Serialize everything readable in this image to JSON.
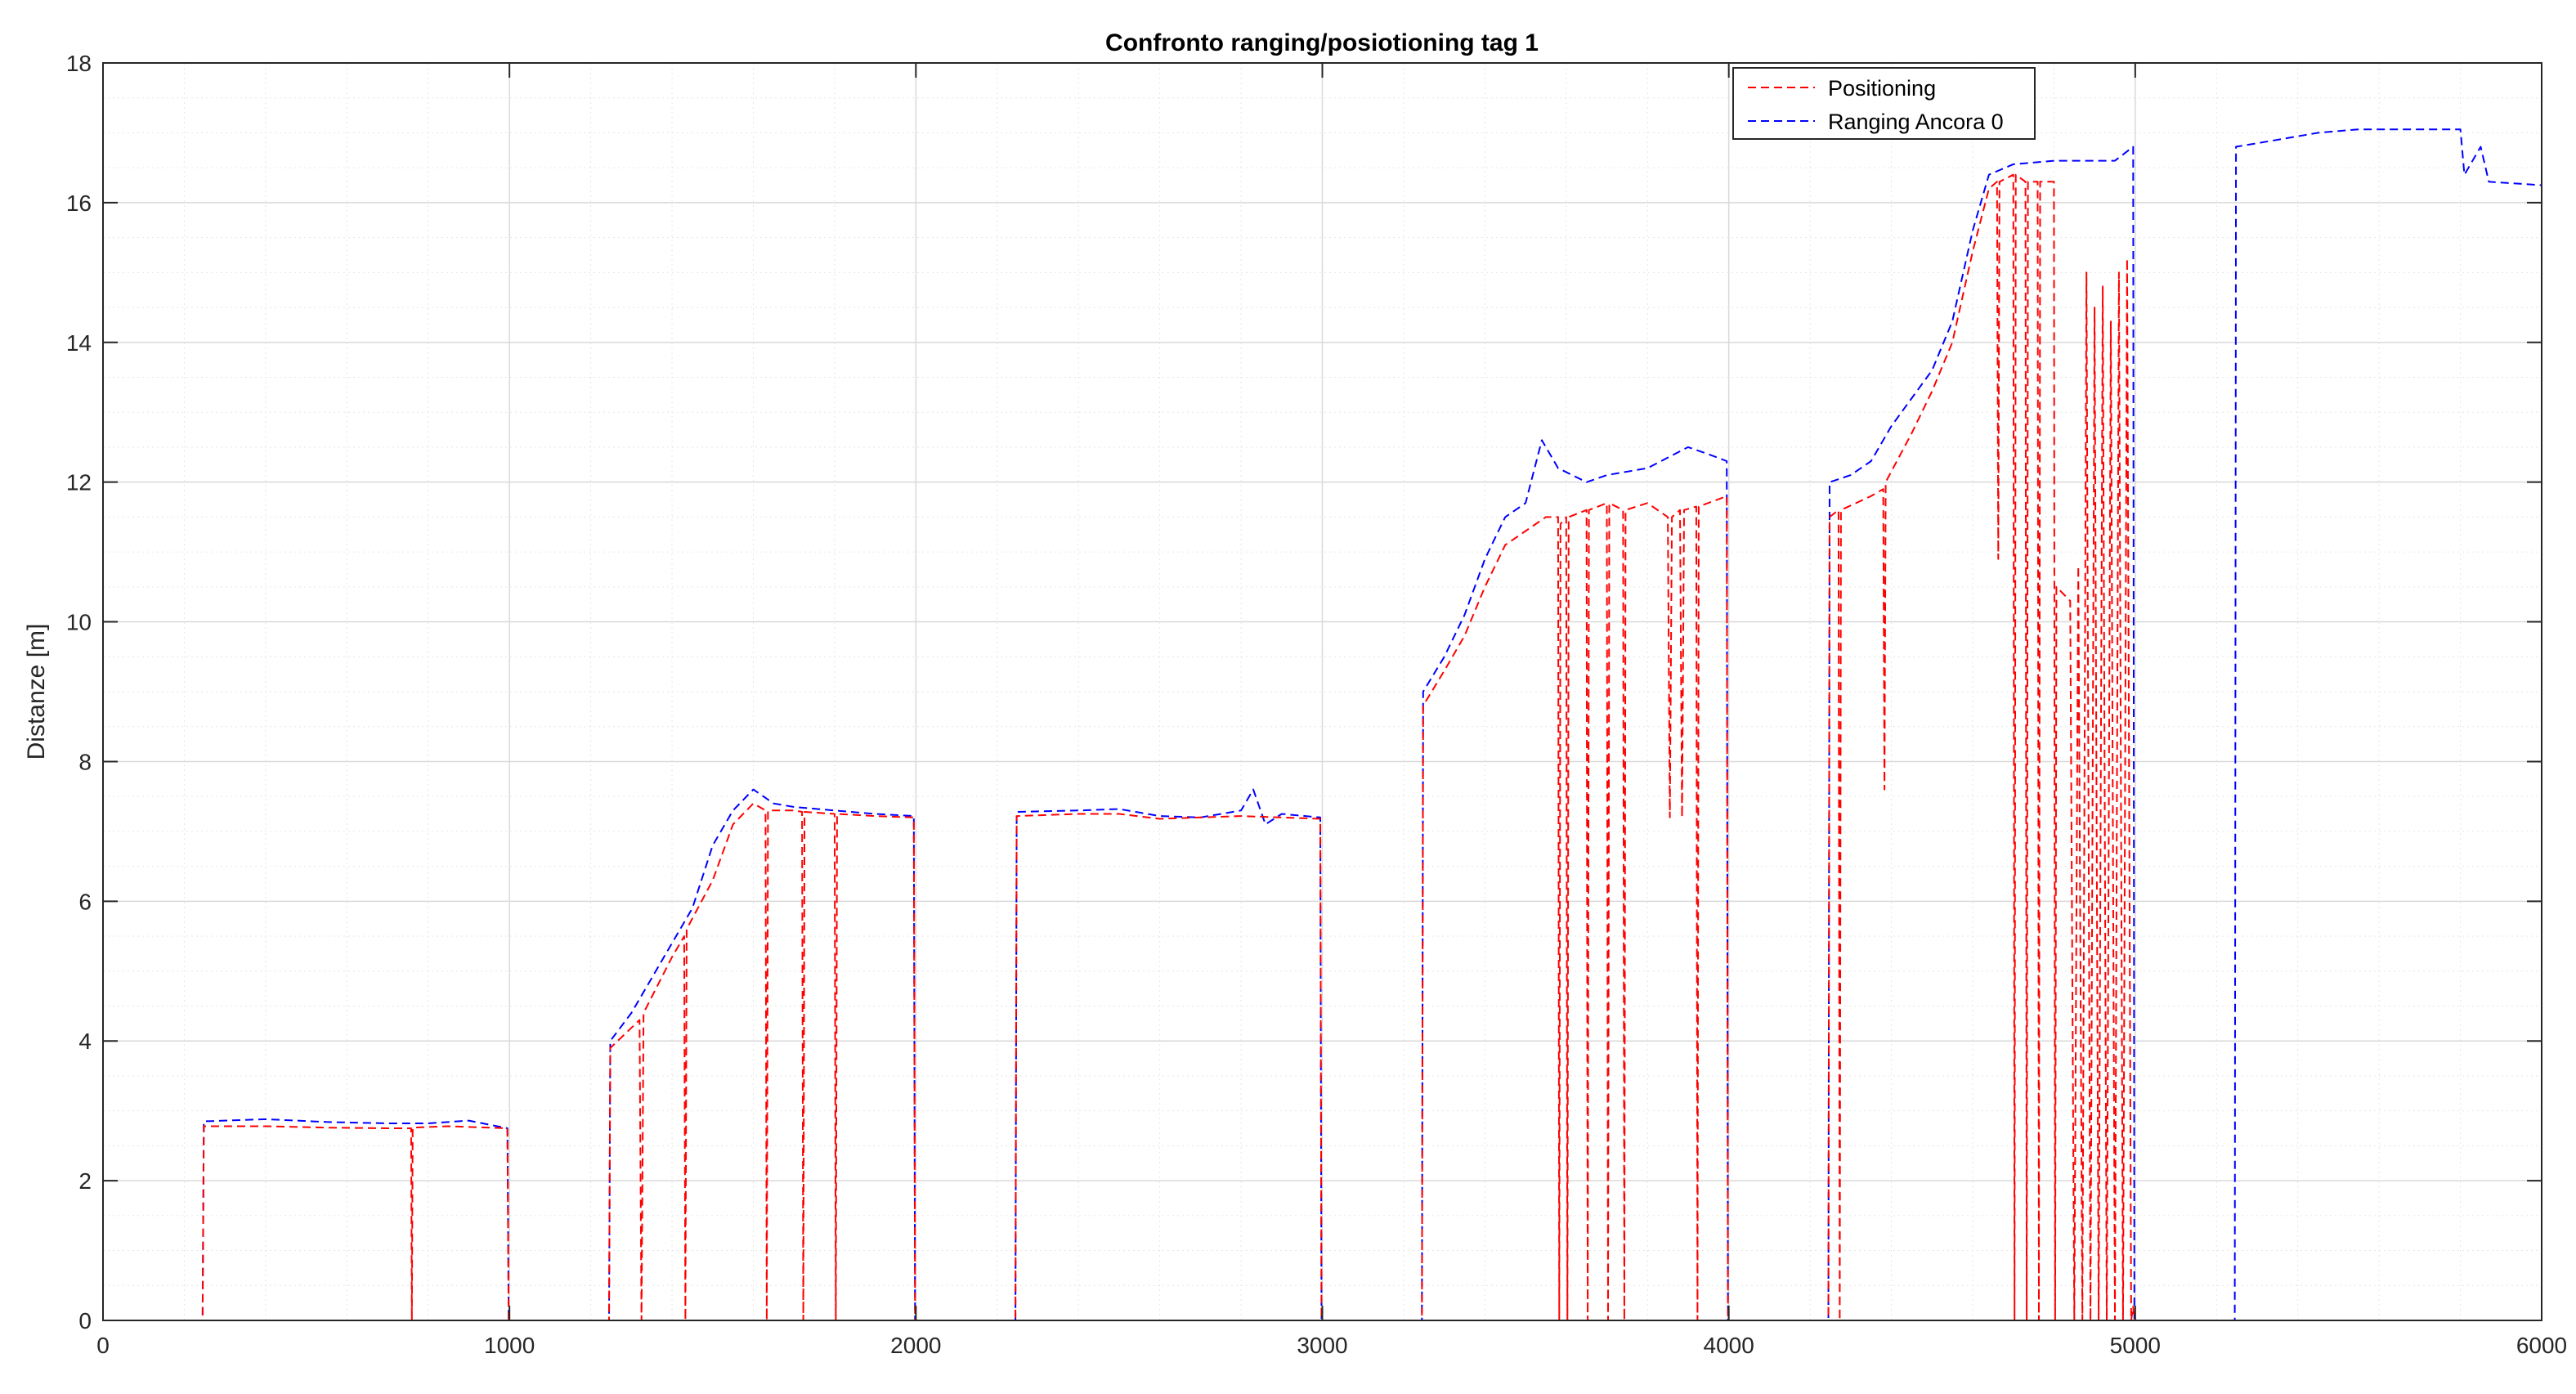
{
  "chart_data": {
    "type": "line",
    "title": "Confronto ranging/posiotioning tag 1",
    "xlabel": "",
    "ylabel": "Distanze [m]",
    "xlim": [
      0,
      6000
    ],
    "ylim": [
      0,
      18
    ],
    "xticks": [
      0,
      1000,
      2000,
      3000,
      4000,
      5000,
      6000
    ],
    "yticks": [
      0,
      2,
      4,
      6,
      8,
      10,
      12,
      14,
      16,
      18
    ],
    "grid": true,
    "minor_grid": true,
    "legend_position": "top-right",
    "series": [
      {
        "name": "Ranging Ancora 0",
        "color": "#0000ff",
        "line_style": "dashed",
        "points": [
          [
            0,
            0
          ],
          [
            245,
            0
          ],
          [
            248,
            2.85
          ],
          [
            400,
            2.88
          ],
          [
            550,
            2.84
          ],
          [
            700,
            2.82
          ],
          [
            800,
            2.82
          ],
          [
            900,
            2.86
          ],
          [
            995,
            2.75
          ],
          [
            998,
            0
          ],
          [
            1245,
            0
          ],
          [
            1248,
            4.0
          ],
          [
            1300,
            4.4
          ],
          [
            1350,
            4.9
          ],
          [
            1400,
            5.4
          ],
          [
            1450,
            5.9
          ],
          [
            1500,
            6.8
          ],
          [
            1550,
            7.3
          ],
          [
            1600,
            7.6
          ],
          [
            1650,
            7.4
          ],
          [
            1700,
            7.35
          ],
          [
            1800,
            7.3
          ],
          [
            1900,
            7.25
          ],
          [
            1995,
            7.22
          ],
          [
            1998,
            0
          ],
          [
            2245,
            0
          ],
          [
            2248,
            7.28
          ],
          [
            2400,
            7.3
          ],
          [
            2500,
            7.32
          ],
          [
            2600,
            7.22
          ],
          [
            2700,
            7.2
          ],
          [
            2800,
            7.3
          ],
          [
            2830,
            7.6
          ],
          [
            2860,
            7.1
          ],
          [
            2900,
            7.25
          ],
          [
            2995,
            7.2
          ],
          [
            2998,
            0
          ],
          [
            3245,
            0
          ],
          [
            3248,
            9.0
          ],
          [
            3300,
            9.5
          ],
          [
            3350,
            10.1
          ],
          [
            3400,
            10.9
          ],
          [
            3450,
            11.5
          ],
          [
            3500,
            11.7
          ],
          [
            3540,
            12.6
          ],
          [
            3580,
            12.2
          ],
          [
            3650,
            12.0
          ],
          [
            3700,
            12.1
          ],
          [
            3800,
            12.2
          ],
          [
            3900,
            12.5
          ],
          [
            3950,
            12.4
          ],
          [
            3995,
            12.3
          ],
          [
            3998,
            0
          ],
          [
            4245,
            0
          ],
          [
            4248,
            12.0
          ],
          [
            4300,
            12.1
          ],
          [
            4350,
            12.3
          ],
          [
            4400,
            12.8
          ],
          [
            4450,
            13.2
          ],
          [
            4500,
            13.6
          ],
          [
            4550,
            14.3
          ],
          [
            4600,
            15.6
          ],
          [
            4640,
            16.4
          ],
          [
            4700,
            16.55
          ],
          [
            4800,
            16.6
          ],
          [
            4950,
            16.6
          ],
          [
            4995,
            16.8
          ],
          [
            4998,
            0
          ],
          [
            5245,
            0
          ],
          [
            5248,
            16.8
          ],
          [
            5350,
            16.9
          ],
          [
            5450,
            17.0
          ],
          [
            5550,
            17.05
          ],
          [
            5700,
            17.05
          ],
          [
            5800,
            17.05
          ],
          [
            5810,
            16.4
          ],
          [
            5850,
            16.8
          ],
          [
            5870,
            16.3
          ],
          [
            6000,
            16.25
          ]
        ]
      },
      {
        "name": "Positioning",
        "color": "#ff0000",
        "line_style": "dashed",
        "points": [
          [
            0,
            0
          ],
          [
            245,
            0
          ],
          [
            248,
            2.78
          ],
          [
            400,
            2.78
          ],
          [
            550,
            2.76
          ],
          [
            700,
            2.75
          ],
          [
            758,
            2.75
          ],
          [
            760,
            0
          ],
          [
            762,
            2.76
          ],
          [
            850,
            2.78
          ],
          [
            995,
            2.75
          ],
          [
            998,
            0
          ],
          [
            1245,
            0
          ],
          [
            1248,
            3.9
          ],
          [
            1320,
            4.3
          ],
          [
            1325,
            0
          ],
          [
            1330,
            4.4
          ],
          [
            1400,
            5.2
          ],
          [
            1430,
            5.5
          ],
          [
            1433,
            0
          ],
          [
            1436,
            5.6
          ],
          [
            1500,
            6.3
          ],
          [
            1550,
            7.1
          ],
          [
            1600,
            7.4
          ],
          [
            1630,
            7.3
          ],
          [
            1633,
            0
          ],
          [
            1636,
            7.3
          ],
          [
            1700,
            7.3
          ],
          [
            1720,
            7.28
          ],
          [
            1723,
            0
          ],
          [
            1726,
            7.28
          ],
          [
            1800,
            7.25
          ],
          [
            1803,
            0
          ],
          [
            1806,
            7.25
          ],
          [
            1900,
            7.22
          ],
          [
            1995,
            7.2
          ],
          [
            1998,
            0
          ],
          [
            2245,
            0
          ],
          [
            2248,
            7.22
          ],
          [
            2400,
            7.25
          ],
          [
            2500,
            7.25
          ],
          [
            2600,
            7.18
          ],
          [
            2700,
            7.2
          ],
          [
            2800,
            7.22
          ],
          [
            2900,
            7.2
          ],
          [
            2995,
            7.18
          ],
          [
            2998,
            0
          ],
          [
            3245,
            0
          ],
          [
            3248,
            8.8
          ],
          [
            3300,
            9.3
          ],
          [
            3350,
            9.8
          ],
          [
            3400,
            10.5
          ],
          [
            3450,
            11.1
          ],
          [
            3500,
            11.3
          ],
          [
            3550,
            11.5
          ],
          [
            3580,
            11.5
          ],
          [
            3583,
            0
          ],
          [
            3586,
            11.4
          ],
          [
            3600,
            11.5
          ],
          [
            3603,
            0
          ],
          [
            3606,
            11.5
          ],
          [
            3650,
            11.6
          ],
          [
            3653,
            0
          ],
          [
            3656,
            11.6
          ],
          [
            3700,
            11.7
          ],
          [
            3703,
            0
          ],
          [
            3706,
            11.7
          ],
          [
            3740,
            11.6
          ],
          [
            3743,
            0
          ],
          [
            3746,
            11.6
          ],
          [
            3800,
            11.7
          ],
          [
            3850,
            11.5
          ],
          [
            3855,
            7.2
          ],
          [
            3860,
            11.5
          ],
          [
            3880,
            11.6
          ],
          [
            3885,
            7.2
          ],
          [
            3890,
            11.6
          ],
          [
            3920,
            11.65
          ],
          [
            3923,
            0
          ],
          [
            3926,
            11.65
          ],
          [
            3995,
            11.8
          ],
          [
            3998,
            0
          ],
          [
            4245,
            0
          ],
          [
            4248,
            11.5
          ],
          [
            4270,
            11.6
          ],
          [
            4273,
            0
          ],
          [
            4276,
            11.6
          ],
          [
            4350,
            11.8
          ],
          [
            4380,
            11.9
          ],
          [
            4383,
            7.6
          ],
          [
            4386,
            12.0
          ],
          [
            4450,
            12.7
          ],
          [
            4500,
            13.3
          ],
          [
            4550,
            14.0
          ],
          [
            4600,
            15.3
          ],
          [
            4640,
            16.2
          ],
          [
            4660,
            16.3
          ],
          [
            4663,
            10.9
          ],
          [
            4666,
            16.3
          ],
          [
            4700,
            16.4
          ],
          [
            4703,
            0
          ],
          [
            4706,
            16.4
          ],
          [
            4730,
            16.3
          ],
          [
            4733,
            0
          ],
          [
            4736,
            16.3
          ],
          [
            4760,
            16.3
          ],
          [
            4763,
            0
          ],
          [
            4766,
            16.3
          ],
          [
            4800,
            16.3
          ],
          [
            4803,
            0
          ],
          [
            4806,
            10.5
          ],
          [
            4840,
            10.3
          ],
          [
            4850,
            0
          ],
          [
            4860,
            10.8
          ],
          [
            4870,
            0
          ],
          [
            4880,
            15.0
          ],
          [
            4890,
            0
          ],
          [
            4900,
            14.5
          ],
          [
            4910,
            0
          ],
          [
            4920,
            14.8
          ],
          [
            4930,
            0
          ],
          [
            4940,
            14.3
          ],
          [
            4950,
            0
          ],
          [
            4960,
            15.0
          ],
          [
            4970,
            0
          ],
          [
            4980,
            15.2
          ],
          [
            4990,
            0
          ],
          [
            4995,
            0.2
          ],
          [
            4998,
            0
          ],
          [
            5250,
            0
          ],
          [
            5800,
            0
          ],
          [
            6000,
            0
          ]
        ]
      }
    ]
  }
}
